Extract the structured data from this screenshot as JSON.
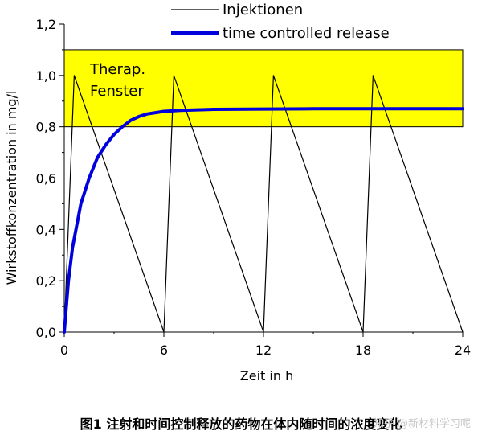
{
  "chart_data": {
    "type": "line",
    "xlabel": "Zeit in h",
    "ylabel": "Wirkstoffkonzentration in mg/l",
    "xlim": [
      0,
      24
    ],
    "ylim": [
      0,
      1.2
    ],
    "x_ticks": [
      0,
      6,
      12,
      18,
      24
    ],
    "y_ticks": [
      0.0,
      0.2,
      0.4,
      0.6,
      0.8,
      1.0,
      1.2
    ],
    "x_tick_labels": [
      "0",
      "6",
      "12",
      "18",
      "24"
    ],
    "y_tick_labels": [
      "0,0",
      "0,2",
      "0,4",
      "0,6",
      "0,8",
      "1,0",
      "1,2"
    ],
    "band": {
      "y_from": 0.8,
      "y_to": 1.1,
      "color": "#ffff00",
      "label": "Therap.\nFenster"
    },
    "series": [
      {
        "name": "Injektionen",
        "color": "#000000",
        "x": [
          0,
          0.6,
          6.0,
          6.6,
          12.0,
          12.6,
          18.0,
          18.6,
          24.0
        ],
        "y": [
          0.0,
          1.0,
          0.0,
          1.0,
          0.0,
          1.0,
          0.0,
          1.0,
          0.0
        ]
      },
      {
        "name": "time controlled release",
        "color": "#0000dd",
        "x": [
          0,
          0.25,
          0.5,
          1.0,
          1.5,
          2.0,
          2.5,
          3.0,
          3.5,
          4.0,
          4.5,
          5.0,
          5.5,
          6.0,
          6.5,
          7.0,
          8.0,
          9.0,
          12.0,
          15.0,
          18.0,
          21.0,
          24.0
        ],
        "y": [
          0.0,
          0.2,
          0.33,
          0.5,
          0.6,
          0.68,
          0.73,
          0.77,
          0.8,
          0.825,
          0.84,
          0.85,
          0.855,
          0.86,
          0.862,
          0.864,
          0.866,
          0.868,
          0.869,
          0.87,
          0.87,
          0.87,
          0.87
        ]
      }
    ],
    "legend_position": "top"
  },
  "caption": "图1 注射和时间控制释放的药物在体内随时间的浓度变化",
  "watermark": "知乎 @新材料学习呢"
}
